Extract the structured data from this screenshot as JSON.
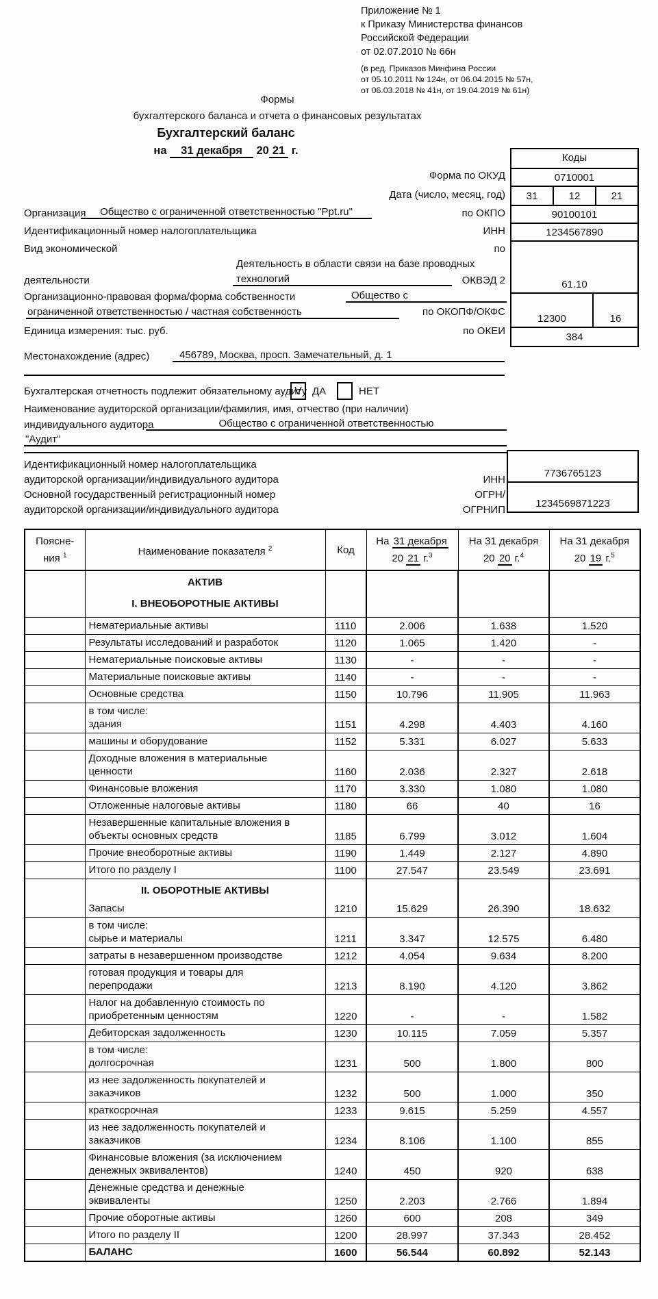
{
  "header": {
    "appendix": [
      "Приложение № 1",
      "к Приказу Министерства финансов",
      "Российской Федерации",
      "от 02.07.2010 № 66н"
    ],
    "edition": [
      "(в ред. Приказов Минфина России",
      "от 05.10.2011 № 124н, от 06.04.2015 № 57н,",
      "от 06.03.2018 № 41н, от 19.04.2019 № 61н)"
    ],
    "forms_line1": "Формы",
    "forms_line2": "бухгалтерского баланса и отчета о финансовых результатах",
    "doc_title": "Бухгалтерский баланс",
    "date_na": "на",
    "date_day": "31 декабря",
    "date_century": "20",
    "date_year": "21",
    "date_g": "г."
  },
  "codes": {
    "title": "Коды",
    "okud_value": "0710001",
    "date_values": [
      "31",
      "12",
      "21"
    ],
    "okpo_value": "90100101",
    "inn_value": "1234567890",
    "okved_value": "61.10",
    "okopf_value": "12300",
    "okfs_value": "16",
    "okei_value": "384"
  },
  "labels": {
    "okud": "Форма по ОКУД",
    "date": "Дата (число, месяц, год)",
    "okpo": "по ОКПО",
    "inn": "ИНН",
    "po": "по",
    "okved": "ОКВЭД 2",
    "okopf": "по ОКОПФ/ОКФС",
    "okei": "по ОКЕИ"
  },
  "org": {
    "label": "Организация",
    "name": "Общество с ограниченной ответственностью \"Ppt.ru\"",
    "inn_line": "Идентификационный номер налогоплательщика",
    "activity_label1": "Вид экономической",
    "activity_label2": "деятельности",
    "activity_value1": "Деятельность в области связи на базе проводных",
    "activity_value2": "технологий",
    "form_label": "Организационно-правовая форма/форма собственности",
    "form_value1": "Общество с",
    "form_value2": "ограниченной ответственностью / частная собственность",
    "unit": "Единица измерения: тыс. руб.",
    "address_label": "Местонахождение (адрес)",
    "address": "456789, Москва, просп. Замечательный, д. 1"
  },
  "audit": {
    "statement": "Бухгалтерская отчетность подлежит обязательному аудиту",
    "yes_mark": "V",
    "yes_label": "ДА",
    "no_label": "НЕТ",
    "name_label1": "Наименование аудиторской организации/фамилия, имя, отчество (при наличии)",
    "name_label2": "индивидуального аудитора",
    "name_value1": "Общество с ограниченной ответственностью",
    "name_value2": "\"Аудит\"",
    "inn_label1": "Идентификационный номер налогоплательщика",
    "inn_label2": "аудиторской организации/индивидуального аудитора",
    "inn_tag": "ИНН",
    "inn_value": "7736765123",
    "ogrn_label1": "Основной государственный регистрационный номер",
    "ogrn_label2": "аудиторской организации/индивидуального аудитора",
    "ogrn_tag1": "ОГРН/",
    "ogrn_tag2": "ОГРНИП",
    "ogrn_value": "1234569871223"
  },
  "table": {
    "header": {
      "notes1": "Поясне-",
      "notes2": "ния",
      "notes_sup": "1",
      "name": "Наименование показателя",
      "name_sup": "2",
      "code": "Код",
      "cols": [
        {
          "na": "На",
          "date": "31 декабря",
          "u": true,
          "c": "20",
          "y": "21",
          "g": "г.",
          "sup": "3"
        },
        {
          "na": "На",
          "date": "31 декабря",
          "u": false,
          "c": "20",
          "y": "20",
          "g": "г.",
          "sup": "4"
        },
        {
          "na": "На",
          "date": "31 декабря",
          "u": false,
          "c": "20",
          "y": "19",
          "g": "г.",
          "sup": "5"
        }
      ]
    },
    "rows": [
      {
        "s": [
          "АКТИВ",
          "I. ВНЕОБОРОТНЫЕ АКТИВЫ"
        ]
      },
      {
        "n": [
          "Нематериальные активы"
        ],
        "c": "1110",
        "v": [
          "2.006",
          "1.638",
          "1.520"
        ]
      },
      {
        "n": [
          "Результаты исследований и разработок"
        ],
        "c": "1120",
        "v": [
          "1.065",
          "1.420",
          "-"
        ]
      },
      {
        "n": [
          "Нематериальные поисковые активы"
        ],
        "c": "1130",
        "v": [
          "-",
          "-",
          "-"
        ]
      },
      {
        "n": [
          "Материальные поисковые активы"
        ],
        "c": "1140",
        "v": [
          "-",
          "-",
          "-"
        ]
      },
      {
        "n": [
          "Основные средства"
        ],
        "c": "1150",
        "v": [
          "10.796",
          "11.905",
          "11.963"
        ]
      },
      {
        "n": [
          "в том числе:",
          "здания"
        ],
        "c": "1151",
        "v": [
          "4.298",
          "4.403",
          "4.160"
        ]
      },
      {
        "n": [
          "машины и оборудование"
        ],
        "c": "1152",
        "v": [
          "5.331",
          "6.027",
          "5.633"
        ]
      },
      {
        "n": [
          "Доходные вложения в материальные",
          "ценности"
        ],
        "c": "1160",
        "v": [
          "2.036",
          "2.327",
          "2.618"
        ]
      },
      {
        "n": [
          "Финансовые вложения"
        ],
        "c": "1170",
        "v": [
          "3.330",
          "1.080",
          "1.080"
        ]
      },
      {
        "n": [
          "Отложенные налоговые активы"
        ],
        "c": "1180",
        "v": [
          "66",
          "40",
          "16"
        ]
      },
      {
        "n": [
          "Незавершенные капитальные вложения в",
          "объекты основных средств"
        ],
        "c": "1185",
        "v": [
          "6.799",
          "3.012",
          "1.604"
        ]
      },
      {
        "n": [
          "Прочие внеоборотные активы"
        ],
        "c": "1190",
        "v": [
          "1.449",
          "2.127",
          "4.890"
        ]
      },
      {
        "n": [
          "Итого по разделу I"
        ],
        "c": "1100",
        "v": [
          "27.547",
          "23.549",
          "23.691"
        ],
        "t": 1
      },
      {
        "s": [
          "II. ОБОРОТНЫЕ АКТИВЫ"
        ],
        "n": [
          "Запасы"
        ],
        "c": "1210",
        "v": [
          "15.629",
          "26.390",
          "18.632"
        ]
      },
      {
        "n": [
          "в том числе:",
          "сырье и материалы"
        ],
        "c": "1211",
        "v": [
          "3.347",
          "12.575",
          "6.480"
        ]
      },
      {
        "n": [
          "затраты в незавершенном производстве"
        ],
        "c": "1212",
        "v": [
          "4.054",
          "9.634",
          "8.200"
        ]
      },
      {
        "n": [
          "готовая продукция и товары для",
          "перепродажи"
        ],
        "c": "1213",
        "v": [
          "8.190",
          "4.120",
          "3.862"
        ]
      },
      {
        "n": [
          "Налог на добавленную стоимость по",
          "приобретенным ценностям"
        ],
        "c": "1220",
        "v": [
          "-",
          "-",
          "1.582"
        ]
      },
      {
        "n": [
          "Дебиторская задолженность"
        ],
        "c": "1230",
        "v": [
          "10.115",
          "7.059",
          "5.357"
        ]
      },
      {
        "n": [
          "в том числе:",
          "долгосрочная"
        ],
        "c": "1231",
        "v": [
          "500",
          "1.800",
          "800"
        ]
      },
      {
        "n": [
          "из нее задолженность покупателей и",
          "заказчиков"
        ],
        "c": "1232",
        "v": [
          "500",
          "1.000",
          "350"
        ]
      },
      {
        "n": [
          "краткосрочная"
        ],
        "c": "1233",
        "v": [
          "9.615",
          "5.259",
          "4.557"
        ]
      },
      {
        "n": [
          "из нее задолженность покупателей и",
          "заказчиков"
        ],
        "c": "1234",
        "v": [
          "8.106",
          "1.100",
          "855"
        ]
      },
      {
        "n": [
          "Финансовые вложения (за исключением",
          "денежных эквивалентов)"
        ],
        "c": "1240",
        "v": [
          "450",
          "920",
          "638"
        ]
      },
      {
        "n": [
          "Денежные средства и денежные",
          "эквиваленты"
        ],
        "c": "1250",
        "v": [
          "2.203",
          "2.766",
          "1.894"
        ]
      },
      {
        "n": [
          "Прочие оборотные активы"
        ],
        "c": "1260",
        "v": [
          "600",
          "208",
          "349"
        ]
      },
      {
        "n": [
          "Итого по разделу II"
        ],
        "c": "1200",
        "v": [
          "28.997",
          "37.343",
          "28.452"
        ],
        "t": 1
      },
      {
        "n": [
          "БАЛАНС"
        ],
        "c": "1600",
        "v": [
          "56.544",
          "60.892",
          "52.143"
        ],
        "t": 1,
        "b": 1
      }
    ]
  }
}
